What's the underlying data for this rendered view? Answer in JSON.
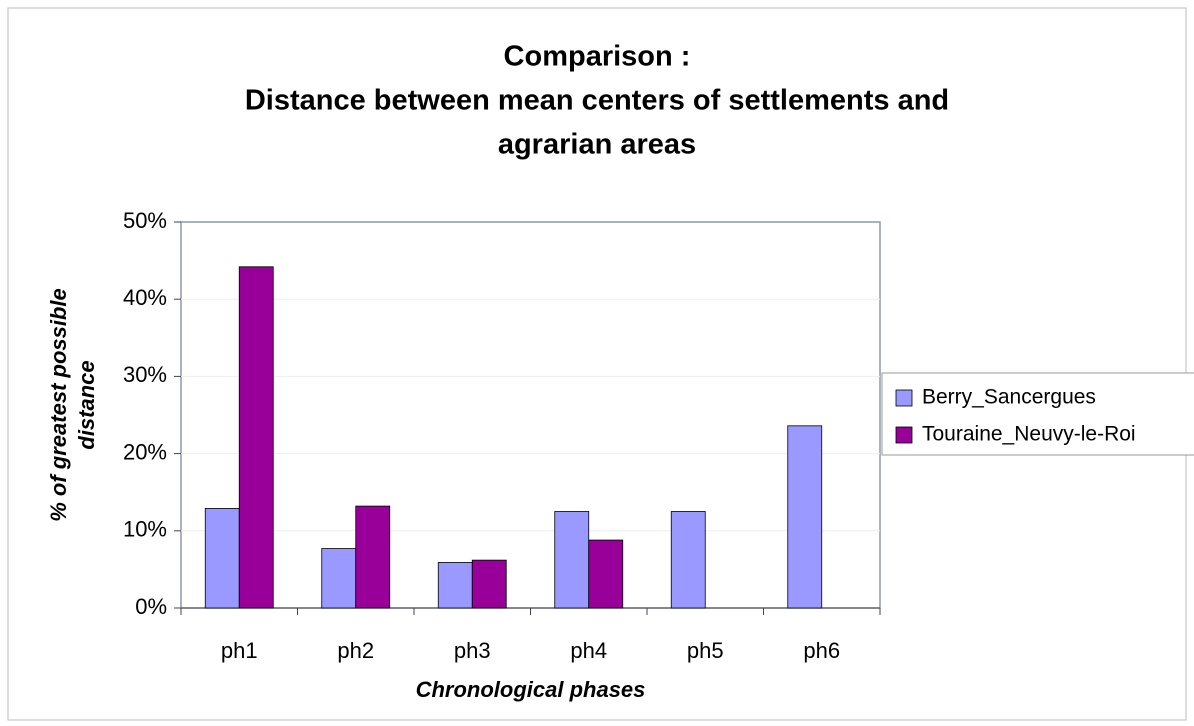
{
  "chart_data": {
    "type": "bar",
    "title": [
      "Comparison :",
      "Distance between mean centers of settlements and",
      "agrarian areas"
    ],
    "x_label": "Chronological phases",
    "y_label": [
      "% of greatest possible",
      "distance"
    ],
    "categories": [
      "ph1",
      "ph2",
      "ph3",
      "ph4",
      "ph5",
      "ph6"
    ],
    "series": [
      {
        "name": "Berry_Sancergues",
        "color": "#9999ff",
        "values": [
          12.9,
          7.7,
          5.9,
          12.5,
          12.5,
          23.6
        ]
      },
      {
        "name": "Touraine_Neuvy-le-Roi",
        "color": "#990099",
        "values": [
          44.2,
          13.2,
          6.2,
          8.8,
          null,
          null
        ]
      }
    ],
    "ylim": [
      0,
      50
    ],
    "yticks": [
      {
        "value": 0,
        "label": "0%"
      },
      {
        "value": 10,
        "label": "10%"
      },
      {
        "value": 20,
        "label": "20%"
      },
      {
        "value": 30,
        "label": "30%"
      },
      {
        "value": 40,
        "label": "40%"
      },
      {
        "value": 50,
        "label": "50%"
      }
    ],
    "grid": true,
    "legend": "right"
  }
}
